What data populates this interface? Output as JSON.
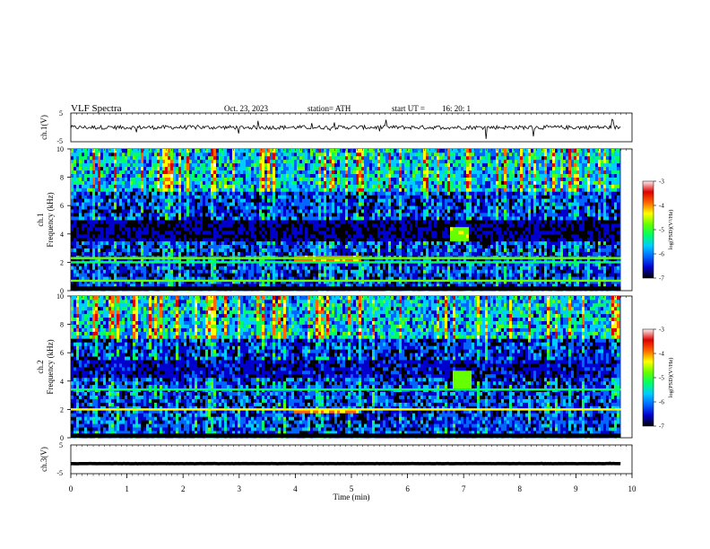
{
  "header": {
    "title": "VLF  Spectra",
    "date": "Oct. 23, 2023",
    "station": "station= ATH",
    "start_label": "start  UT  =",
    "start_time": "16: 20: 1"
  },
  "chart_data": [
    {
      "type": "line",
      "panel": "ch1-waveform",
      "ylabel": "ch.1(V)",
      "yticks": [
        "5",
        "-5"
      ],
      "ylim": [
        -5,
        5
      ],
      "xlim": [
        0,
        10
      ],
      "baseline_value": 0,
      "trace_color": "#000000",
      "grid": false
    },
    {
      "type": "heatmap",
      "panel": "ch1-spectrogram",
      "ylabel_channel": "ch.1",
      "ylabel": "Frequency  (kHz)",
      "yticks": [
        "0",
        "2",
        "4",
        "6",
        "8",
        "10"
      ],
      "ylim": [
        0,
        10
      ],
      "xlim": [
        0,
        10
      ],
      "colorbar": {
        "label": "log(PSD)(V²/Hz)",
        "ticks": [
          "-3",
          "-4",
          "-5",
          "-6",
          "-7"
        ],
        "range": [
          -7,
          -3
        ],
        "colors": [
          "#000000",
          "#0000cc",
          "#0066ff",
          "#00ccff",
          "#00ff66",
          "#66ff00",
          "#ffff00",
          "#ff6600",
          "#dd0000",
          "#ffeeee"
        ]
      },
      "features": [
        {
          "kind": "band",
          "f_low": 3.5,
          "f_high": 4.9,
          "level": -6.8
        },
        {
          "kind": "line",
          "freq": 2.3,
          "level": -4.8
        },
        {
          "kind": "line",
          "freq": 2.0,
          "level": -5.2
        },
        {
          "kind": "line",
          "freq": 0.7,
          "level": -4.6
        },
        {
          "kind": "patch",
          "t_start": 6.75,
          "t_end": 7.05,
          "f_low": 3.4,
          "f_high": 4.6,
          "level": -4.7
        },
        {
          "kind": "patch",
          "t_start": 3.95,
          "t_end": 5.15,
          "f_low": 2.1,
          "f_high": 2.5,
          "level": -4.0
        }
      ]
    },
    {
      "type": "heatmap",
      "panel": "ch2-spectrogram",
      "ylabel_channel": "ch.2",
      "ylabel": "Frequency  (kHz)",
      "yticks": [
        "0",
        "2",
        "4",
        "6",
        "8",
        "10"
      ],
      "ylim": [
        0,
        10
      ],
      "xlim": [
        0,
        10
      ],
      "colorbar": {
        "label": "log(PSD)(V²/Hz)",
        "ticks": [
          "-3",
          "-4",
          "-5",
          "-6",
          "-7"
        ],
        "range": [
          -7,
          -3
        ],
        "colors": [
          "#000000",
          "#0000cc",
          "#0066ff",
          "#00ccff",
          "#00ff66",
          "#66ff00",
          "#ffff00",
          "#ff6600",
          "#dd0000",
          "#ffeeee"
        ]
      },
      "features": [
        {
          "kind": "band",
          "f_low": 4.3,
          "f_high": 5.4,
          "level": -6.6
        },
        {
          "kind": "line",
          "freq": 2.0,
          "level": -4.5
        },
        {
          "kind": "line",
          "freq": 3.4,
          "level": -5.3
        },
        {
          "kind": "patch",
          "t_start": 6.8,
          "t_end": 7.1,
          "f_low": 3.5,
          "f_high": 4.8,
          "level": -4.8
        },
        {
          "kind": "patch",
          "t_start": 3.95,
          "t_end": 5.1,
          "f_low": 1.7,
          "f_high": 2.1,
          "level": -4.1
        }
      ]
    },
    {
      "type": "line",
      "panel": "ch3-waveform",
      "ylabel": "ch.3(V)",
      "yticks": [
        "5",
        "-5"
      ],
      "ylim": [
        -5,
        5
      ],
      "xlim": [
        0,
        10
      ],
      "baseline_value": -1.5,
      "trace_color": "#000000",
      "grid": false
    }
  ],
  "x_axis": {
    "label": "Time  (min)",
    "ticks": [
      "0",
      "1",
      "2",
      "3",
      "4",
      "5",
      "6",
      "7",
      "8",
      "9",
      "10"
    ],
    "range": [
      0,
      10
    ],
    "data_end": 9.8
  }
}
